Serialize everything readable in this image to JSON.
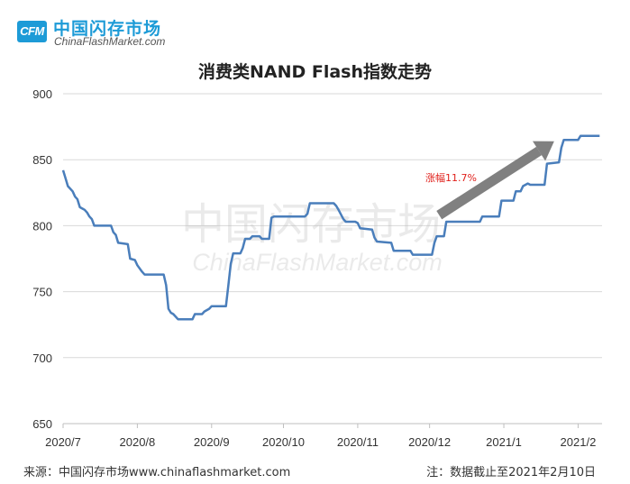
{
  "header": {
    "logo_mark": "CFM",
    "logo_cn": "中国闪存市场",
    "logo_en": "ChinaFlashMarket.com"
  },
  "watermark": {
    "cn": "中国闪存市场",
    "en": "ChinaFlashMarket.com"
  },
  "footer": {
    "source": "来源：中国闪存市场www.chinaflashmarket.com",
    "note": "注：数据截止至2021年2月10日"
  },
  "colors": {
    "line": "#4a7ebb",
    "arrow": "#808080",
    "annotation": "#e0201b",
    "grid": "#d9d9d9"
  },
  "chart_data": {
    "type": "line",
    "title": "消费类NAND Flash指数走势",
    "ylim": [
      650,
      900
    ],
    "yticks": [
      650,
      700,
      750,
      800,
      850,
      900
    ],
    "xlim": [
      "2020-07-01",
      "2021-02-11"
    ],
    "xticks": [
      {
        "label": "2020/7",
        "date": "2020-07-01"
      },
      {
        "label": "2020/8",
        "date": "2020-08-01"
      },
      {
        "label": "2020/9",
        "date": "2020-09-01"
      },
      {
        "label": "2020/10",
        "date": "2020-10-01"
      },
      {
        "label": "2020/11",
        "date": "2020-11-01"
      },
      {
        "label": "2020/12",
        "date": "2020-12-01"
      },
      {
        "label": "2021/1",
        "date": "2021-01-01"
      },
      {
        "label": "2021/2",
        "date": "2021-02-01"
      }
    ],
    "grid": "horizontal",
    "annotation": "涨幅11.7%",
    "series": [
      {
        "points": [
          [
            "2020-07-01",
            842
          ],
          [
            "2020-07-02",
            836
          ],
          [
            "2020-07-03",
            830
          ],
          [
            "2020-07-05",
            826
          ],
          [
            "2020-07-06",
            822
          ],
          [
            "2020-07-07",
            820
          ],
          [
            "2020-07-08",
            814
          ],
          [
            "2020-07-09",
            813
          ],
          [
            "2020-07-10",
            812
          ],
          [
            "2020-07-11",
            810
          ],
          [
            "2020-07-12",
            807
          ],
          [
            "2020-07-13",
            805
          ],
          [
            "2020-07-14",
            800
          ],
          [
            "2020-07-21",
            800
          ],
          [
            "2020-07-22",
            795
          ],
          [
            "2020-07-23",
            793
          ],
          [
            "2020-07-24",
            787
          ],
          [
            "2020-07-28",
            786
          ],
          [
            "2020-07-29",
            775
          ],
          [
            "2020-07-31",
            774
          ],
          [
            "2020-08-01",
            770
          ],
          [
            "2020-08-03",
            765
          ],
          [
            "2020-08-04",
            763
          ],
          [
            "2020-08-12",
            763
          ],
          [
            "2020-08-13",
            755
          ],
          [
            "2020-08-14",
            737
          ],
          [
            "2020-08-15",
            734
          ],
          [
            "2020-08-16",
            733
          ],
          [
            "2020-08-18",
            729
          ],
          [
            "2020-08-24",
            729
          ],
          [
            "2020-08-25",
            733
          ],
          [
            "2020-08-28",
            733
          ],
          [
            "2020-08-29",
            735
          ],
          [
            "2020-08-31",
            737
          ],
          [
            "2020-09-01",
            739
          ],
          [
            "2020-09-07",
            739
          ],
          [
            "2020-09-08",
            755
          ],
          [
            "2020-09-09",
            771
          ],
          [
            "2020-09-10",
            779
          ],
          [
            "2020-09-13",
            779
          ],
          [
            "2020-09-14",
            783
          ],
          [
            "2020-09-15",
            790
          ],
          [
            "2020-09-17",
            790
          ],
          [
            "2020-09-18",
            792
          ],
          [
            "2020-09-21",
            792
          ],
          [
            "2020-09-22",
            790
          ],
          [
            "2020-09-25",
            790
          ],
          [
            "2020-09-26",
            806
          ],
          [
            "2020-09-27",
            807
          ],
          [
            "2020-10-10",
            807
          ],
          [
            "2020-10-11",
            809
          ],
          [
            "2020-10-12",
            817
          ],
          [
            "2020-10-22",
            817
          ],
          [
            "2020-10-23",
            815
          ],
          [
            "2020-10-24",
            812
          ],
          [
            "2020-10-26",
            805
          ],
          [
            "2020-10-27",
            803
          ],
          [
            "2020-10-31",
            803
          ],
          [
            "2020-11-01",
            802
          ],
          [
            "2020-11-02",
            798
          ],
          [
            "2020-11-07",
            797
          ],
          [
            "2020-11-08",
            791
          ],
          [
            "2020-11-09",
            788
          ],
          [
            "2020-11-15",
            787
          ],
          [
            "2020-11-16",
            781
          ],
          [
            "2020-11-23",
            781
          ],
          [
            "2020-11-24",
            778
          ],
          [
            "2020-12-02",
            778
          ],
          [
            "2020-12-03",
            787
          ],
          [
            "2020-12-04",
            792
          ],
          [
            "2020-12-07",
            792
          ],
          [
            "2020-12-08",
            803
          ],
          [
            "2020-12-22",
            803
          ],
          [
            "2020-12-23",
            807
          ],
          [
            "2020-12-30",
            807
          ],
          [
            "2020-12-31",
            819
          ],
          [
            "2021-01-05",
            819
          ],
          [
            "2021-01-06",
            826
          ],
          [
            "2021-01-08",
            826
          ],
          [
            "2021-01-09",
            830
          ],
          [
            "2021-01-11",
            832
          ],
          [
            "2021-01-12",
            831
          ],
          [
            "2021-01-18",
            831
          ],
          [
            "2021-01-19",
            847
          ],
          [
            "2021-01-24",
            848
          ],
          [
            "2021-01-25",
            859
          ],
          [
            "2021-01-26",
            865
          ],
          [
            "2021-02-01",
            865
          ],
          [
            "2021-02-02",
            868
          ],
          [
            "2021-02-10",
            868
          ]
        ]
      }
    ]
  }
}
